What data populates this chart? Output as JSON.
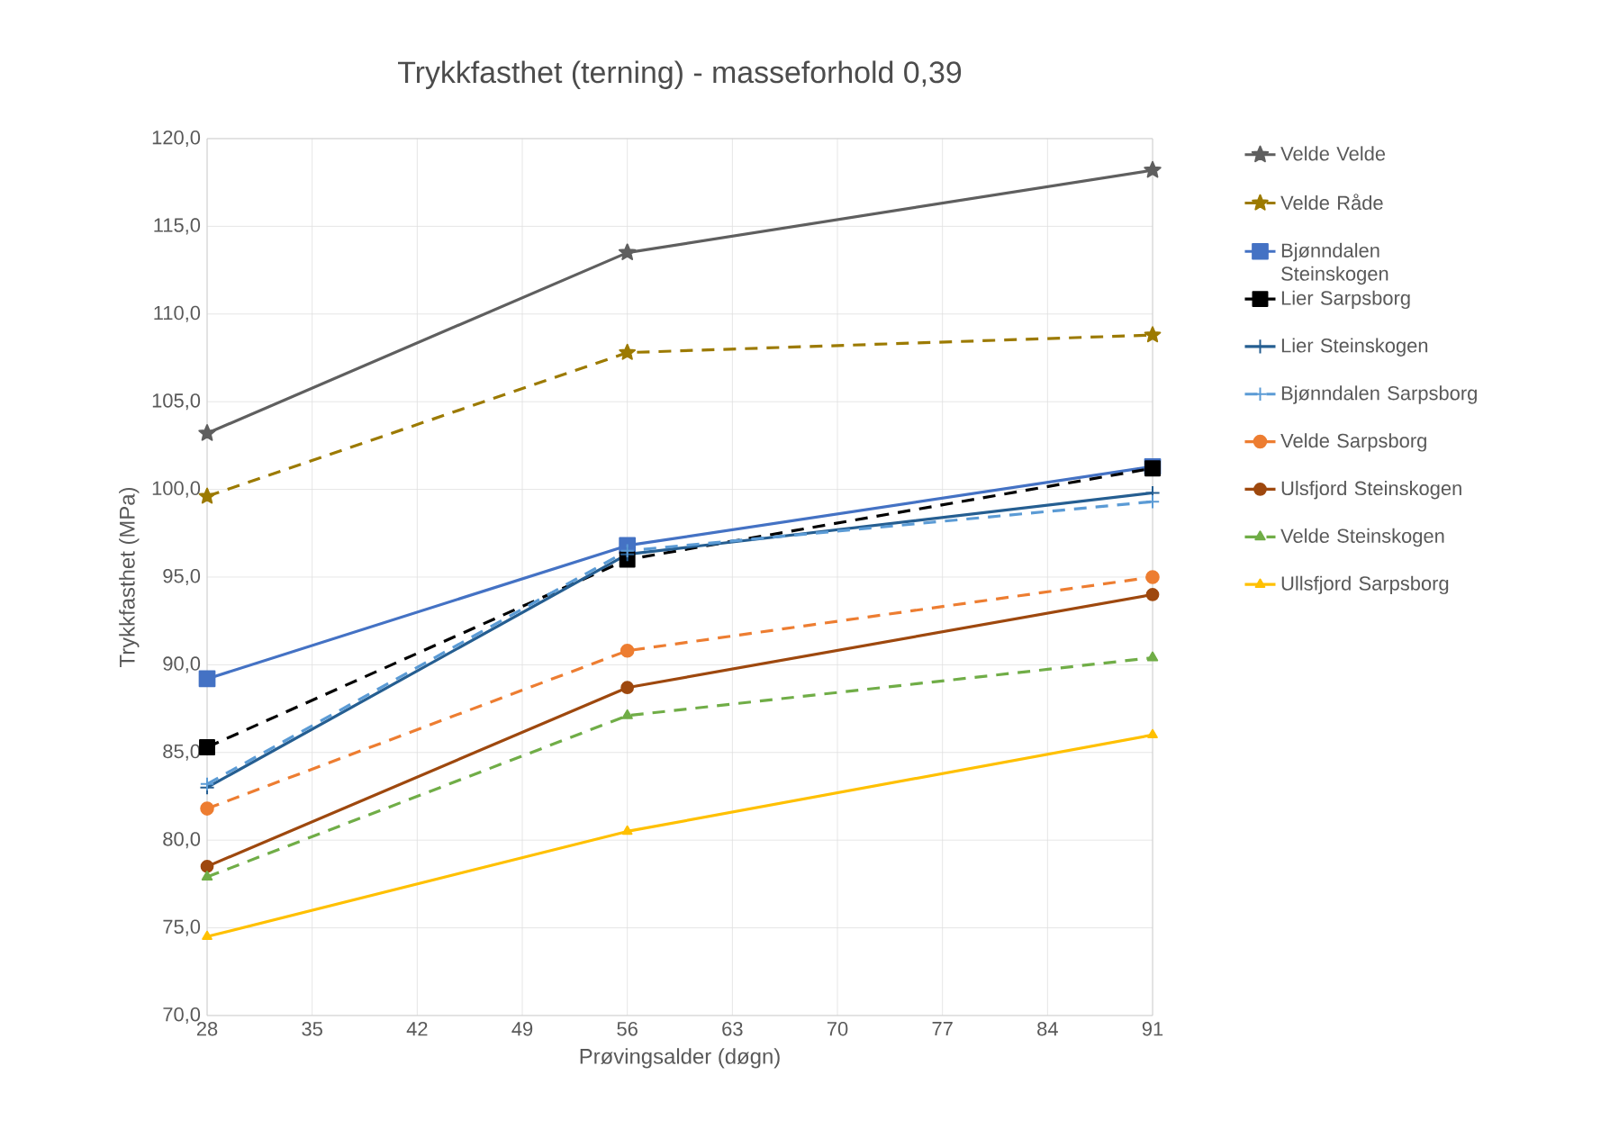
{
  "chart_data": {
    "type": "line",
    "title": "Trykkfasthet (terning) - masseforhold 0,39",
    "xlabel": "Prøvingsalder (døgn)",
    "ylabel": "Trykkfasthet (MPa)",
    "x": [
      28,
      56,
      91
    ],
    "xlim": [
      28,
      91
    ],
    "xticks": [
      28,
      35,
      42,
      49,
      56,
      63,
      70,
      77,
      84,
      91
    ],
    "ylim": [
      70,
      120
    ],
    "yticks": [
      {
        "value": 70,
        "label": "70,0"
      },
      {
        "value": 75,
        "label": "75,0"
      },
      {
        "value": 80,
        "label": "80,0"
      },
      {
        "value": 85,
        "label": "85,0"
      },
      {
        "value": 90,
        "label": "90,0"
      },
      {
        "value": 95,
        "label": "95,0"
      },
      {
        "value": 100,
        "label": "100,0"
      },
      {
        "value": 105,
        "label": "105,0"
      },
      {
        "value": 110,
        "label": "110,0"
      },
      {
        "value": 115,
        "label": "115,0"
      },
      {
        "value": 120,
        "label": "120,0"
      }
    ],
    "grid": true,
    "legend": "right",
    "series": [
      {
        "name": "Velde Velde",
        "color": "#5f5f5f",
        "marker": "star",
        "line_style": "solid",
        "values": [
          103.2,
          113.5,
          118.2
        ]
      },
      {
        "name": "Velde Råde",
        "color": "#9c7a00",
        "marker": "star",
        "line_style": "dashed",
        "values": [
          99.6,
          107.8,
          108.8
        ]
      },
      {
        "name": "Bjønndalen Steinskogen",
        "color": "#4472c4",
        "marker": "square",
        "line_style": "solid",
        "values": [
          89.2,
          96.8,
          101.3
        ]
      },
      {
        "name": "Lier Sarpsborg",
        "color": "#000000",
        "marker": "square",
        "line_style": "dashed",
        "values": [
          85.3,
          96.0,
          101.2
        ]
      },
      {
        "name": "Lier Steinskogen",
        "color": "#255e91",
        "marker": "cross",
        "line_style": "solid",
        "values": [
          83.0,
          96.3,
          99.8
        ]
      },
      {
        "name": "Bjønndalen Sarpsborg",
        "color": "#5b9bd5",
        "marker": "cross",
        "line_style": "dashed",
        "values": [
          83.2,
          96.5,
          99.3
        ]
      },
      {
        "name": "Velde Sarpsborg",
        "color": "#ed7d31",
        "marker": "circle",
        "line_style": "dashed",
        "values": [
          81.8,
          90.8,
          95.0
        ]
      },
      {
        "name": "Ulsfjord Steinskogen",
        "color": "#9e480e",
        "marker": "circle",
        "line_style": "solid",
        "values": [
          78.5,
          88.7,
          94.0
        ]
      },
      {
        "name": "Velde Steinskogen",
        "color": "#70ad47",
        "marker": "triangle",
        "line_style": "dashed",
        "values": [
          77.9,
          87.1,
          90.4
        ]
      },
      {
        "name": "Ullsfjord Sarpsborg",
        "color": "#ffc000",
        "marker": "triangle",
        "line_style": "solid",
        "values": [
          74.5,
          80.5,
          86.0
        ]
      }
    ]
  }
}
